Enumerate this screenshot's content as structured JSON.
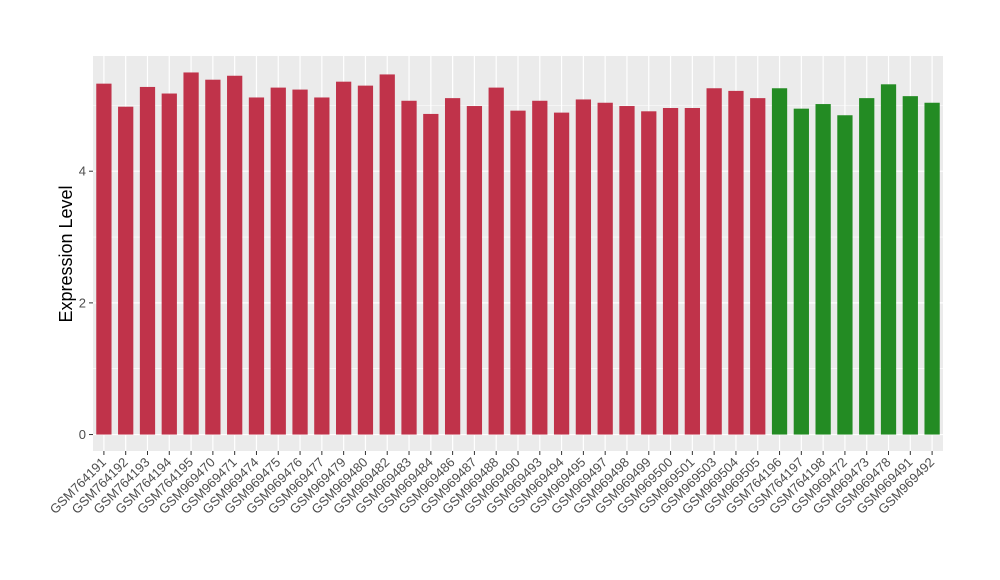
{
  "colors": {
    "panel_background": "#ebebeb",
    "grid_major": "#ffffff",
    "group_red": "#c0334a",
    "group_green": "#238b23"
  },
  "chart_data": {
    "type": "bar",
    "title": "",
    "xlabel": "",
    "ylabel": "Expression Level",
    "ylim": [
      -0.25,
      5.75
    ],
    "yticks": [
      0,
      2,
      4
    ],
    "grid": true,
    "legend": "none",
    "categories": [
      "GSM764191",
      "GSM764192",
      "GSM764193",
      "GSM764194",
      "GSM764195",
      "GSM969470",
      "GSM969471",
      "GSM969474",
      "GSM969475",
      "GSM969476",
      "GSM969477",
      "GSM969479",
      "GSM969480",
      "GSM969482",
      "GSM969483",
      "GSM969484",
      "GSM969486",
      "GSM969487",
      "GSM969488",
      "GSM969490",
      "GSM969493",
      "GSM969494",
      "GSM969495",
      "GSM969497",
      "GSM969498",
      "GSM969499",
      "GSM969500",
      "GSM969501",
      "GSM969503",
      "GSM969504",
      "GSM969505",
      "GSM764196",
      "GSM764197",
      "GSM764198",
      "GSM969472",
      "GSM969473",
      "GSM969478",
      "GSM969491",
      "GSM969492"
    ],
    "values": [
      5.33,
      4.98,
      5.28,
      5.18,
      5.5,
      5.39,
      5.45,
      5.12,
      5.27,
      5.24,
      5.12,
      5.36,
      5.3,
      5.47,
      5.07,
      4.87,
      5.11,
      4.99,
      5.27,
      4.92,
      5.07,
      4.89,
      5.09,
      5.04,
      4.99,
      4.91,
      4.96,
      4.96,
      5.26,
      5.22,
      5.11,
      5.26,
      4.95,
      5.02,
      4.85,
      5.11,
      5.32,
      5.14,
      5.04
    ],
    "groups": [
      "red",
      "red",
      "red",
      "red",
      "red",
      "red",
      "red",
      "red",
      "red",
      "red",
      "red",
      "red",
      "red",
      "red",
      "red",
      "red",
      "red",
      "red",
      "red",
      "red",
      "red",
      "red",
      "red",
      "red",
      "red",
      "red",
      "red",
      "red",
      "red",
      "red",
      "red",
      "green",
      "green",
      "green",
      "green",
      "green",
      "green",
      "green",
      "green"
    ]
  }
}
